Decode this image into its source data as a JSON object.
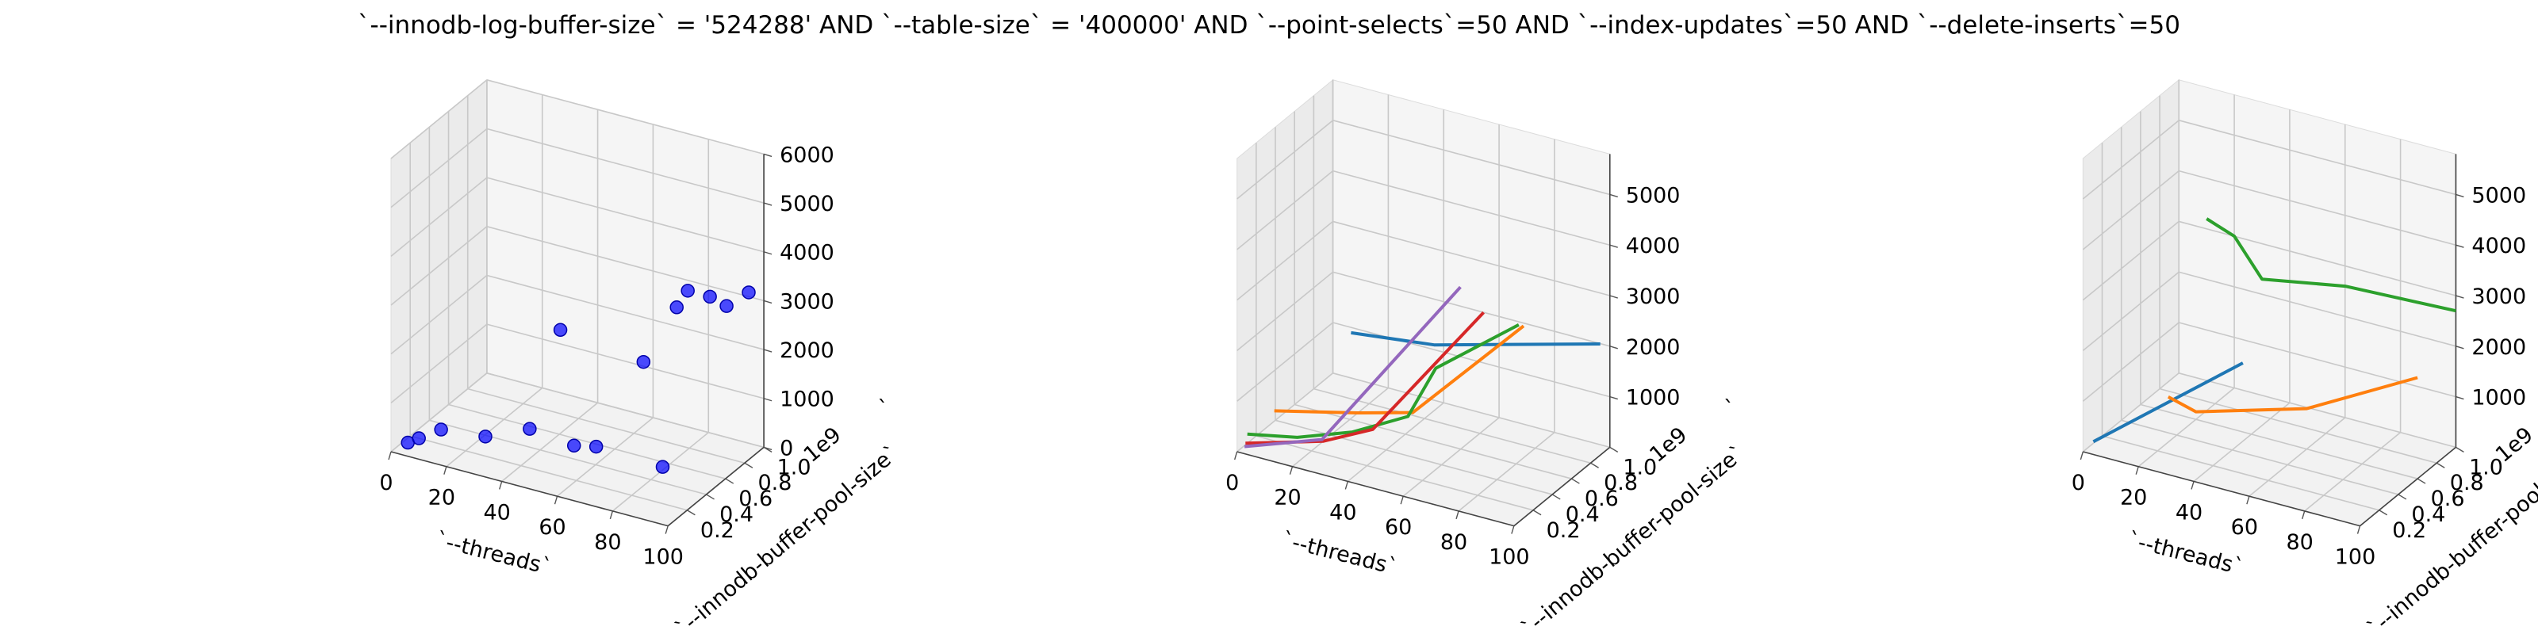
{
  "figure": {
    "title": "`--innodb-log-buffer-size` = '524288' AND `--table-size` = '400000'  AND `--point-selects`=50 AND `--index-updates`=50 AND `--delete-inserts`=50"
  },
  "chart_data": [
    {
      "type": "scatter3d",
      "xlabel": "`--threads`",
      "ylabel": "`--innodb-buffer-pool-size`",
      "zlabel": "`",
      "xlim": [
        0,
        100
      ],
      "ylim": [
        0,
        1.0
      ],
      "zlim": [
        0,
        6000
      ],
      "xticks": [
        "0",
        "20",
        "40",
        "60",
        "80",
        "100"
      ],
      "yticks": [
        "0.2",
        "0.4",
        "0.6",
        "0.8",
        "1.0"
      ],
      "zticks": [
        "0",
        "1000",
        "2000",
        "3000",
        "4000",
        "5000",
        "6000"
      ],
      "ytick_offset": "1e9",
      "grid": true,
      "marker_color": "#0000ff",
      "points": [
        {
          "x": 4,
          "y": 0.06,
          "z": 150
        },
        {
          "x": 8,
          "y": 0.06,
          "z": 300
        },
        {
          "x": 16,
          "y": 0.06,
          "z": 600
        },
        {
          "x": 32,
          "y": 0.06,
          "z": 700
        },
        {
          "x": 48,
          "y": 0.06,
          "z": 1100
        },
        {
          "x": 64,
          "y": 0.06,
          "z": 1000
        },
        {
          "x": 72,
          "y": 0.06,
          "z": 1100
        },
        {
          "x": 96,
          "y": 0.06,
          "z": 1050
        },
        {
          "x": 30,
          "y": 0.9,
          "z": 1500
        },
        {
          "x": 60,
          "y": 0.9,
          "z": 1300
        },
        {
          "x": 72,
          "y": 0.9,
          "z": 2600
        },
        {
          "x": 76,
          "y": 0.9,
          "z": 3000
        },
        {
          "x": 84,
          "y": 0.9,
          "z": 3000
        },
        {
          "x": 90,
          "y": 0.9,
          "z": 2900
        },
        {
          "x": 98,
          "y": 0.9,
          "z": 3300
        }
      ]
    },
    {
      "type": "line3d",
      "xlabel": "`--threads`",
      "ylabel": "`--innodb-buffer-pool-size`",
      "zlabel": "`",
      "xlim": [
        0,
        100
      ],
      "ylim": [
        0,
        1.0
      ],
      "zlim": [
        0,
        5800
      ],
      "xticks": [
        "0",
        "20",
        "40",
        "60",
        "80",
        "100"
      ],
      "yticks": [
        "0.2",
        "0.4",
        "0.6",
        "0.8",
        "1.0"
      ],
      "zticks": [
        "1000",
        "2000",
        "3000",
        "4000",
        "5000"
      ],
      "ytick_offset": "1e9",
      "grid": true,
      "series": [
        {
          "color": "#1f77b4",
          "points": [
            {
              "x": 10,
              "y": 0.9,
              "z": 1100
            },
            {
              "x": 40,
              "y": 0.9,
              "z": 1300
            },
            {
              "x": 100,
              "y": 0.9,
              "z": 2200
            }
          ]
        },
        {
          "color": "#ff7f0e",
          "points": [
            {
              "x": 10,
              "y": 0.1,
              "z": 800
            },
            {
              "x": 40,
              "y": 0.1,
              "z": 1200
            },
            {
              "x": 60,
              "y": 0.1,
              "z": 1500
            },
            {
              "x": 100,
              "y": 0.1,
              "z": 3800
            }
          ]
        },
        {
          "color": "#2ca02c",
          "points": [
            {
              "x": 2,
              "y": 0.05,
              "z": 300
            },
            {
              "x": 20,
              "y": 0.05,
              "z": 500
            },
            {
              "x": 40,
              "y": 0.05,
              "z": 900
            },
            {
              "x": 60,
              "y": 0.05,
              "z": 1500
            },
            {
              "x": 70,
              "y": 0.05,
              "z": 2600
            },
            {
              "x": 100,
              "y": 0.05,
              "z": 3900
            }
          ]
        },
        {
          "color": "#d62728",
          "points": [
            {
              "x": 2,
              "y": 0.03,
              "z": 150
            },
            {
              "x": 30,
              "y": 0.03,
              "z": 600
            },
            {
              "x": 48,
              "y": 0.03,
              "z": 1100
            },
            {
              "x": 88,
              "y": 0.03,
              "z": 4000
            }
          ]
        },
        {
          "color": "#9467bd",
          "points": [
            {
              "x": 2,
              "y": 0.02,
              "z": 100
            },
            {
              "x": 30,
              "y": 0.02,
              "z": 650
            },
            {
              "x": 80,
              "y": 0.02,
              "z": 4400
            }
          ]
        }
      ]
    },
    {
      "type": "line3d",
      "xlabel": "`--threads`",
      "ylabel": "`--innodb-buffer-pool-size`",
      "zlabel": "`",
      "xlim": [
        0,
        100
      ],
      "ylim": [
        0,
        1.0
      ],
      "zlim": [
        0,
        5800
      ],
      "xticks": [
        "0",
        "20",
        "40",
        "60",
        "80",
        "100"
      ],
      "yticks": [
        "0.2",
        "0.4",
        "0.6",
        "0.8",
        "1.0"
      ],
      "zticks": [
        "1000",
        "2000",
        "3000",
        "4000",
        "5000"
      ],
      "ytick_offset": "1e9",
      "grid": true,
      "series": [
        {
          "color": "#1f77b4",
          "points": [
            {
              "x": 2,
              "y": 0.05,
              "z": 150
            },
            {
              "x": 56,
              "y": 0.05,
              "z": 2500
            }
          ]
        },
        {
          "color": "#ff7f0e",
          "points": [
            {
              "x": 10,
              "y": 0.6,
              "z": 300
            },
            {
              "x": 20,
              "y": 0.6,
              "z": 150
            },
            {
              "x": 60,
              "y": 0.6,
              "z": 800
            },
            {
              "x": 100,
              "y": 0.6,
              "z": 2000
            }
          ]
        },
        {
          "color": "#2ca02c",
          "points": [
            {
              "x": 10,
              "y": 1.0,
              "z": 3200
            },
            {
              "x": 20,
              "y": 1.0,
              "z": 3000
            },
            {
              "x": 30,
              "y": 1.0,
              "z": 2300
            },
            {
              "x": 60,
              "y": 1.0,
              "z": 2600
            },
            {
              "x": 100,
              "y": 1.0,
              "z": 2700
            }
          ]
        }
      ]
    }
  ]
}
